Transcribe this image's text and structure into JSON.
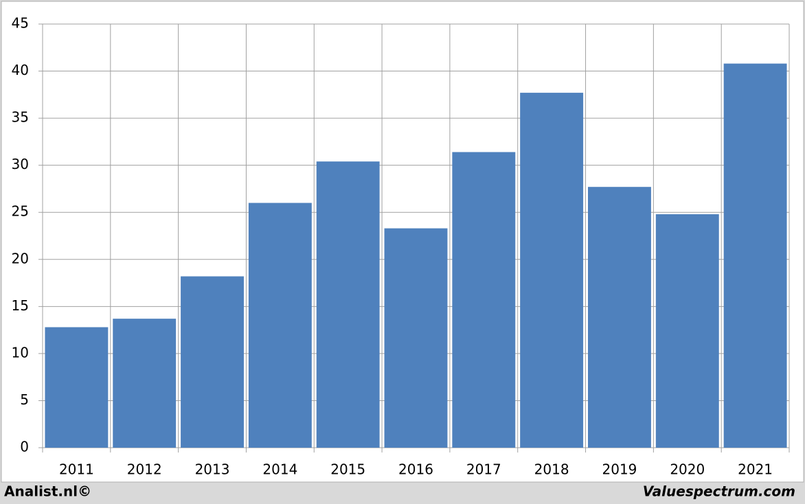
{
  "chart_data": {
    "type": "bar",
    "categories": [
      "2011",
      "2012",
      "2013",
      "2014",
      "2015",
      "2016",
      "2017",
      "2018",
      "2019",
      "2020",
      "2021"
    ],
    "values": [
      12.8,
      13.7,
      18.2,
      26.0,
      30.4,
      23.3,
      31.4,
      37.7,
      27.7,
      24.8,
      40.8
    ],
    "color": "#4f81bd",
    "ylim": [
      0,
      45
    ],
    "yticks": [
      0,
      5,
      10,
      15,
      20,
      25,
      30,
      35,
      40,
      45
    ],
    "grid": true,
    "footer_left": "Analist.nl©",
    "footer_right": "Valuespectrum.com"
  }
}
